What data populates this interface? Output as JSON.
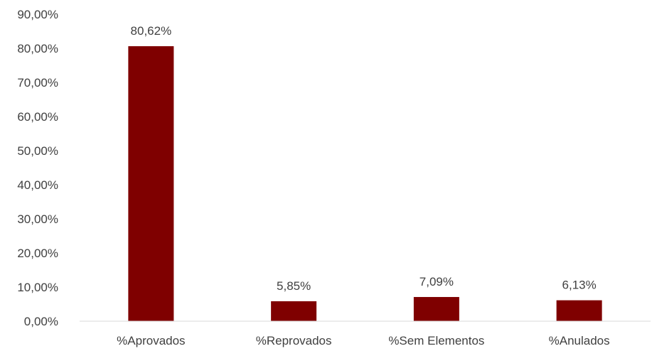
{
  "chart_data": {
    "type": "bar",
    "categories": [
      "%Aprovados",
      "%Reprovados",
      "%Sem Elementos",
      "%Anulados"
    ],
    "values": [
      80.62,
      5.85,
      7.09,
      6.13
    ],
    "data_labels": [
      "80,62%",
      "5,85%",
      "7,09%",
      "6,13%"
    ],
    "ylim": [
      0,
      90
    ],
    "yticks": [
      0,
      10,
      20,
      30,
      40,
      50,
      60,
      70,
      80,
      90
    ],
    "ytick_labels": [
      "0,00%",
      "10,00%",
      "20,00%",
      "30,00%",
      "40,00%",
      "50,00%",
      "60,00%",
      "70,00%",
      "80,00%",
      "90,00%"
    ],
    "grid": false,
    "legend": "none",
    "bar_color": "#7f0000",
    "axis_color": "#d9d9d9",
    "text_color": "#404040"
  }
}
